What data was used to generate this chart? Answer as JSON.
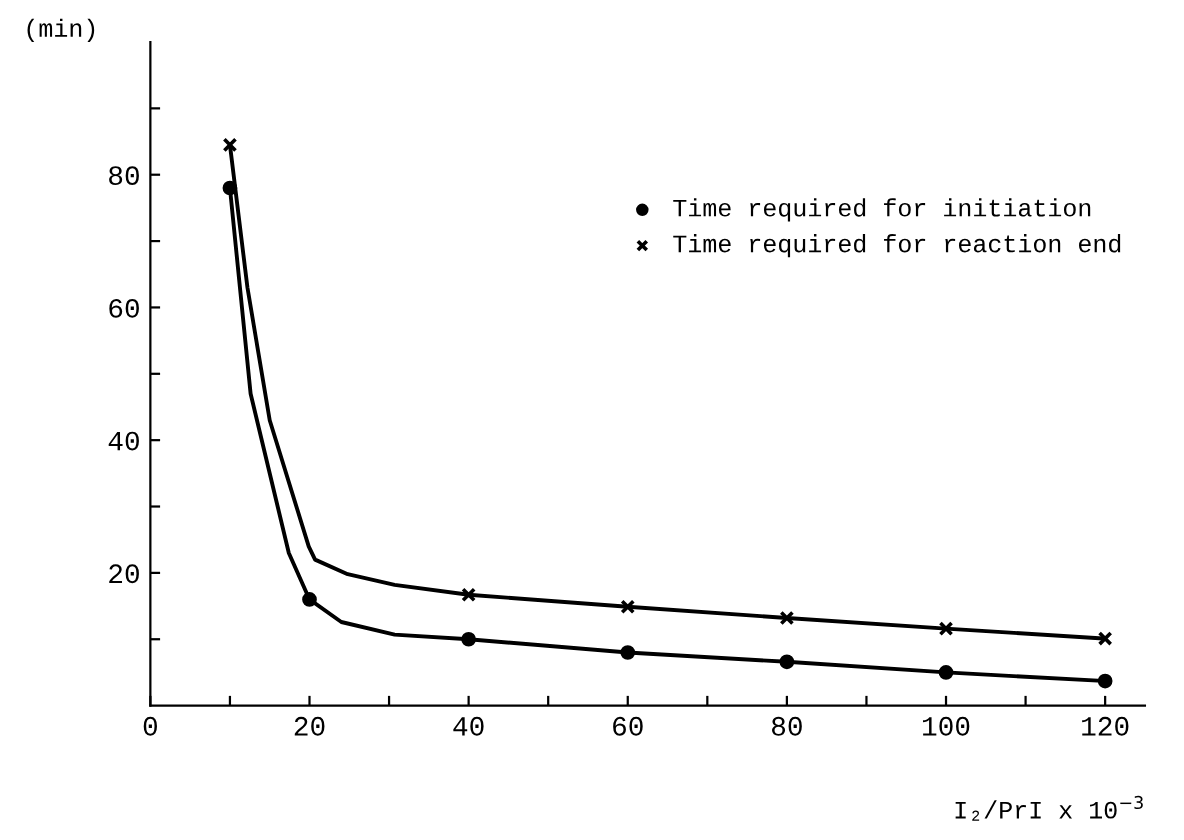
{
  "chart_data": {
    "type": "line",
    "xlabel": "I₂/PrI x 10$^{−3}$",
    "ylabel": "(min)",
    "xlim": [
      0,
      125
    ],
    "ylim": [
      0,
      100
    ],
    "xticks": [
      0,
      {
        "value": 10,
        "label": null
      },
      20,
      {
        "value": 30,
        "label": null
      },
      40,
      {
        "value": 50,
        "label": null
      },
      60,
      {
        "value": 70,
        "label": null
      },
      80,
      {
        "value": 90,
        "label": null
      },
      100,
      {
        "value": 110,
        "label": null
      },
      120
    ],
    "yticks": [
      {
        "value": 10,
        "label": null
      },
      20,
      {
        "value": 30,
        "label": null
      },
      40,
      {
        "value": 50,
        "label": null
      },
      60,
      {
        "value": 70,
        "label": null
      },
      80,
      {
        "value": 90,
        "label": null
      }
    ],
    "grid": false,
    "legend": "right",
    "series": [
      {
        "color": "#000000",
        "marker": "none",
        "x": [
          10,
          12.6,
          17.4,
          20,
          24,
          30.7,
          40,
          60,
          80,
          100,
          120
        ],
        "values": [
          78,
          47,
          23,
          16,
          12.6,
          10.7,
          10,
          8,
          6.6,
          5,
          3.7
        ]
      },
      {
        "color": "#000000",
        "marker": "none",
        "x": [
          10,
          12.2,
          15,
          19.9,
          20.7,
          24.8,
          30.7,
          40,
          60,
          80,
          100,
          120
        ],
        "values": [
          84.5,
          63,
          43,
          24,
          22,
          19.8,
          18.2,
          16.7,
          14.9,
          13.2,
          11.6,
          10.1
        ]
      },
      {
        "type": "scatter",
        "name": "Time required for initiation",
        "color": "#000000",
        "marker": "circle",
        "x": [
          10,
          20,
          40,
          60,
          80,
          100,
          120
        ],
        "values": [
          78,
          16,
          10,
          8,
          6.6,
          5,
          3.7
        ]
      },
      {
        "type": "scatter",
        "name": "Time required for reaction end",
        "color": "#000000",
        "marker": "cross",
        "x": [
          10,
          40,
          60,
          80,
          100,
          120
        ],
        "values": [
          84.5,
          16.7,
          14.9,
          13.2,
          11.6,
          10.1
        ]
      }
    ]
  }
}
